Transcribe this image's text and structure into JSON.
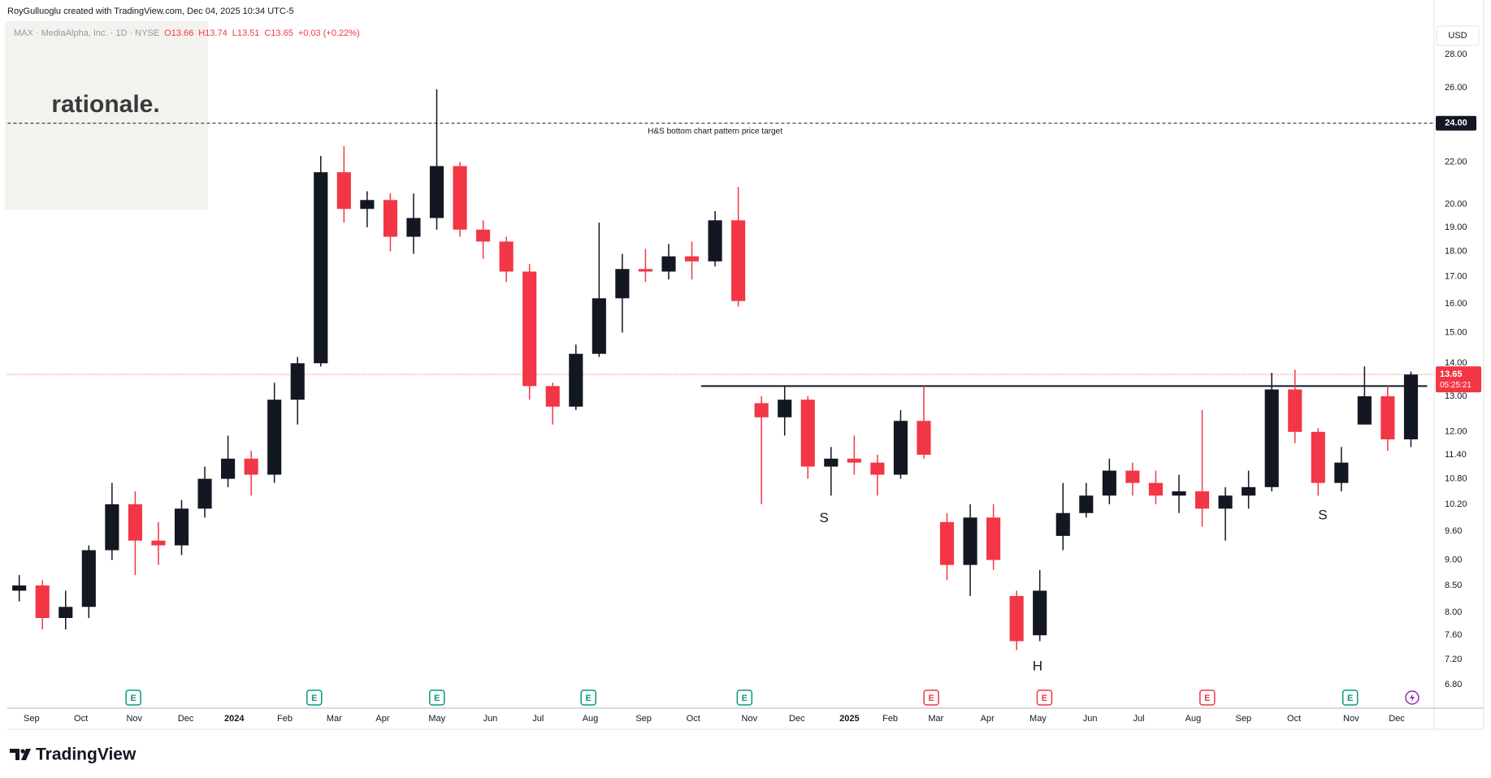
{
  "chart_data": {
    "type": "candlestick",
    "attribution": "RoyGulluoglu created with TradingView.com, Dec 04, 2025 10:34 UTC-5",
    "symbol": "MAX · MediaAlpha, Inc. · 1D · NYSE",
    "ohlc_legend": [
      "O13.66",
      "H13.74",
      "L13.51",
      "C13.65",
      "+0.03 (+0.22%)"
    ],
    "currency": "USD",
    "watermark": "rationale.",
    "brand": "TradingView",
    "up_color": "#131722",
    "down_color": "#f23645",
    "log_scale": true,
    "grid": false,
    "open": [
      8.4,
      8.5,
      7.9,
      8.1,
      9.2,
      10.2,
      9.4,
      9.3,
      10.1,
      10.8,
      11.3,
      10.9,
      12.9,
      14.0,
      21.5,
      19.8,
      20.2,
      18.6,
      19.4,
      21.8,
      18.9,
      18.4,
      17.2,
      13.3,
      12.7,
      14.3,
      16.2,
      17.3,
      17.2,
      17.8,
      17.6,
      19.3,
      12.8,
      12.4,
      12.9,
      11.1,
      11.3,
      11.2,
      10.9,
      12.3,
      9.8,
      8.9,
      9.9,
      8.3,
      7.6,
      9.5,
      10.0,
      10.4,
      11.0,
      10.7,
      10.4,
      10.5,
      10.1,
      10.4,
      10.6,
      13.2,
      12.0,
      10.7,
      12.2,
      13.0,
      11.8
    ],
    "high": [
      8.7,
      8.6,
      8.4,
      9.3,
      10.7,
      10.5,
      9.8,
      10.3,
      11.1,
      11.9,
      11.5,
      13.4,
      14.2,
      22.3,
      22.8,
      20.6,
      20.5,
      20.5,
      25.9,
      22.0,
      19.3,
      18.6,
      17.5,
      13.4,
      14.6,
      19.2,
      17.9,
      18.1,
      18.3,
      18.4,
      19.7,
      20.8,
      13.0,
      13.3,
      13.0,
      11.6,
      11.9,
      11.4,
      12.6,
      13.3,
      10.0,
      10.2,
      10.2,
      8.4,
      8.8,
      10.7,
      10.7,
      11.3,
      11.2,
      11.0,
      10.9,
      12.6,
      10.6,
      11.0,
      13.7,
      13.8,
      12.1,
      11.6,
      13.9,
      13.3,
      13.74
    ],
    "low": [
      8.2,
      7.7,
      7.7,
      7.9,
      9.0,
      8.7,
      8.9,
      9.1,
      9.9,
      10.6,
      10.4,
      10.7,
      12.2,
      13.9,
      19.2,
      19.0,
      18.0,
      17.9,
      18.9,
      18.6,
      17.7,
      16.8,
      12.9,
      12.2,
      12.6,
      14.2,
      15.0,
      16.8,
      16.9,
      16.9,
      17.4,
      15.9,
      10.2,
      11.9,
      10.8,
      10.4,
      10.9,
      10.4,
      10.8,
      11.3,
      8.6,
      8.3,
      8.8,
      7.35,
      7.5,
      9.2,
      9.9,
      10.2,
      10.4,
      10.2,
      10.0,
      9.7,
      9.4,
      10.1,
      10.5,
      11.7,
      10.4,
      10.5,
      12.2,
      11.5,
      11.6
    ],
    "close": [
      8.5,
      7.9,
      8.1,
      9.2,
      10.2,
      9.4,
      9.3,
      10.1,
      10.8,
      11.3,
      10.9,
      12.9,
      14.0,
      21.5,
      19.8,
      20.2,
      18.6,
      19.4,
      21.8,
      18.9,
      18.4,
      17.2,
      13.3,
      12.7,
      14.3,
      16.2,
      17.3,
      17.2,
      17.8,
      17.6,
      19.3,
      16.1,
      12.4,
      12.9,
      11.1,
      11.3,
      11.2,
      10.9,
      12.3,
      11.4,
      8.9,
      9.9,
      9.0,
      7.5,
      8.4,
      10.0,
      10.4,
      11.0,
      10.7,
      10.4,
      10.5,
      10.1,
      10.4,
      10.6,
      13.2,
      12.0,
      10.7,
      11.2,
      13.0,
      11.8,
      13.65
    ],
    "xlim": [
      -0.5,
      61
    ],
    "xticks": [
      {
        "value": 0.53,
        "label": "Sep"
      },
      {
        "value": 2.66,
        "label": "Oct"
      },
      {
        "value": 4.96,
        "label": "Nov"
      },
      {
        "value": 7.18,
        "label": "Dec"
      },
      {
        "value": 9.27,
        "label": "2024"
      },
      {
        "value": 11.45,
        "label": "Feb"
      },
      {
        "value": 13.58,
        "label": "Mar"
      },
      {
        "value": 15.67,
        "label": "Apr"
      },
      {
        "value": 18.01,
        "label": "May"
      },
      {
        "value": 20.31,
        "label": "Jun"
      },
      {
        "value": 22.37,
        "label": "Jul"
      },
      {
        "value": 24.62,
        "label": "Aug"
      },
      {
        "value": 26.92,
        "label": "Sep"
      },
      {
        "value": 29.06,
        "label": "Oct"
      },
      {
        "value": 31.48,
        "label": "Nov"
      },
      {
        "value": 33.53,
        "label": "Dec"
      },
      {
        "value": 35.79,
        "label": "2025"
      },
      {
        "value": 37.55,
        "label": "Feb"
      },
      {
        "value": 39.52,
        "label": "Mar"
      },
      {
        "value": 41.74,
        "label": "Apr"
      },
      {
        "value": 43.92,
        "label": "May"
      },
      {
        "value": 46.17,
        "label": "Jun"
      },
      {
        "value": 48.27,
        "label": "Jul"
      },
      {
        "value": 50.61,
        "label": "Aug"
      },
      {
        "value": 52.78,
        "label": "Sep"
      },
      {
        "value": 54.96,
        "label": "Oct"
      },
      {
        "value": 57.42,
        "label": "Nov"
      },
      {
        "value": 59.39,
        "label": "Dec"
      }
    ],
    "ylim": [
      6.51,
      30.2
    ],
    "yticks": [
      {
        "value": 6.8,
        "label": "6.80"
      },
      {
        "value": 7.2,
        "label": "7.20"
      },
      {
        "value": 7.6,
        "label": "7.60"
      },
      {
        "value": 8,
        "label": "8.00"
      },
      {
        "value": 8.5,
        "label": "8.50"
      },
      {
        "value": 9,
        "label": "9.00"
      },
      {
        "value": 9.6,
        "label": "9.60"
      },
      {
        "value": 10.2,
        "label": "10.20"
      },
      {
        "value": 10.8,
        "label": "10.80"
      },
      {
        "value": 11.4,
        "label": "11.40"
      },
      {
        "value": 12,
        "label": "12.00"
      },
      {
        "value": 13,
        "label": "13.00"
      },
      {
        "value": 14,
        "label": "14.00"
      },
      {
        "value": 15,
        "label": "15.00"
      },
      {
        "value": 16,
        "label": "16.00"
      },
      {
        "value": 17,
        "label": "17.00"
      },
      {
        "value": 18,
        "label": "18.00"
      },
      {
        "value": 19,
        "label": "19.00"
      },
      {
        "value": 20,
        "label": "20.00"
      },
      {
        "value": 22,
        "label": "22.00"
      },
      {
        "value": 26,
        "label": "26.00"
      },
      {
        "value": 28,
        "label": "28.00"
      }
    ],
    "price_target": {
      "value": 24,
      "label": "24.00",
      "text": "H&S bottom chart pattern price target"
    },
    "neckline": {
      "value": 13.3,
      "x": [
        29.4,
        60.7
      ]
    },
    "last_price": {
      "value": 13.65,
      "label": "13.65",
      "countdown": "05:25:21"
    },
    "pattern_labels": [
      {
        "text": "S",
        "x": 34.7,
        "y": 9.88
      },
      {
        "text": "H",
        "x": 43.9,
        "y": 7.08
      },
      {
        "text": "S",
        "x": 56.2,
        "y": 9.94
      }
    ],
    "earnings": [
      {
        "x": 4.92,
        "label": "E",
        "color": "#089981"
      },
      {
        "x": 12.72,
        "label": "E",
        "color": "#089981"
      },
      {
        "x": 18.01,
        "label": "E",
        "color": "#089981"
      },
      {
        "x": 24.54,
        "label": "E",
        "color": "#089981"
      },
      {
        "x": 31.27,
        "label": "E",
        "color": "#089981"
      },
      {
        "x": 39.32,
        "label": "E",
        "color": "#f23645"
      },
      {
        "x": 44.2,
        "label": "E",
        "color": "#f23645"
      },
      {
        "x": 51.22,
        "label": "E",
        "color": "#f23645"
      },
      {
        "x": 57.38,
        "label": "E",
        "color": "#089981"
      }
    ]
  }
}
